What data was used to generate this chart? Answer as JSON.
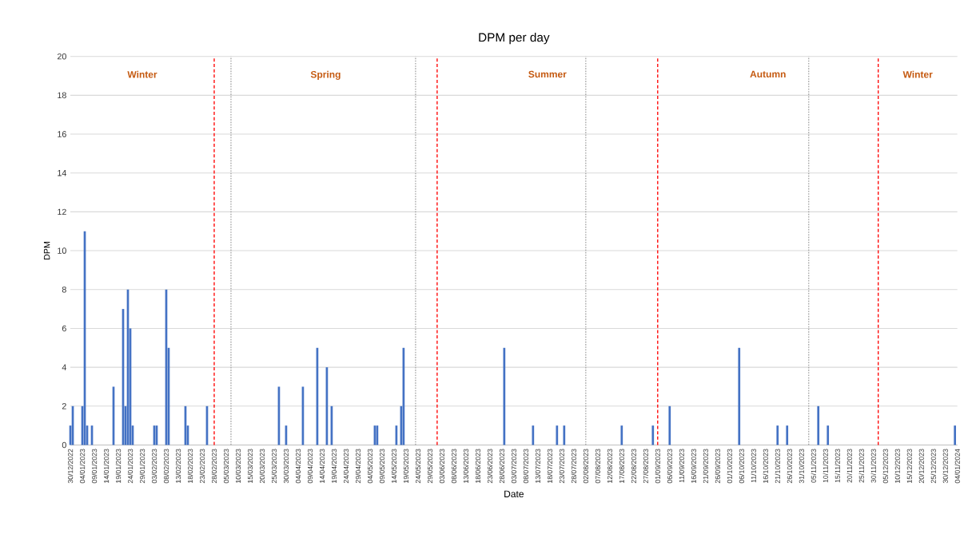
{
  "chart_data": {
    "type": "bar",
    "title": "DPM per day",
    "xlabel": "Date",
    "ylabel": "DPM",
    "color": "#4472c4",
    "x": [
      "2022-12-30",
      "2022-12-31",
      "2023-01-04",
      "2023-01-05",
      "2023-01-06",
      "2023-01-08",
      "2023-01-17",
      "2023-01-21",
      "2023-01-22",
      "2023-01-23",
      "2023-01-24",
      "2023-01-25",
      "2023-02-03",
      "2023-02-04",
      "2023-02-08",
      "2023-02-09",
      "2023-02-16",
      "2023-02-17",
      "2023-02-25",
      "2023-03-27",
      "2023-03-30",
      "2023-04-06",
      "2023-04-12",
      "2023-04-16",
      "2023-04-18",
      "2023-05-06",
      "2023-05-07",
      "2023-05-15",
      "2023-05-17",
      "2023-05-18",
      "2023-06-29",
      "2023-07-11",
      "2023-07-21",
      "2023-07-24",
      "2023-08-17",
      "2023-08-30",
      "2023-09-06",
      "2023-10-05",
      "2023-10-21",
      "2023-10-25",
      "2023-11-07",
      "2023-11-11",
      "2024-01-03"
    ],
    "values": [
      1,
      2,
      2,
      11,
      1,
      1,
      3,
      7,
      2,
      8,
      6,
      1,
      1,
      1,
      8,
      5,
      2,
      1,
      2,
      3,
      1,
      3,
      5,
      4,
      2,
      1,
      1,
      1,
      2,
      5,
      5,
      1,
      1,
      1,
      1,
      1,
      2,
      5,
      1,
      1,
      2,
      1,
      1
    ],
    "xlim": [
      "2022-12-30",
      "2024-01-04"
    ],
    "xticks": [
      {
        "value": "2022-12-30",
        "label": "30/12/2022"
      },
      {
        "value": "2023-01-04",
        "label": "04/01/2023"
      },
      {
        "value": "2023-01-09",
        "label": "09/01/2023"
      },
      {
        "value": "2023-01-14",
        "label": "14/01/2023"
      },
      {
        "value": "2023-01-19",
        "label": "19/01/2023"
      },
      {
        "value": "2023-01-24",
        "label": "24/01/2023"
      },
      {
        "value": "2023-01-29",
        "label": "29/01/2023"
      },
      {
        "value": "2023-02-03",
        "label": "03/02/2023"
      },
      {
        "value": "2023-02-08",
        "label": "08/02/2023"
      },
      {
        "value": "2023-02-13",
        "label": "13/02/2023"
      },
      {
        "value": "2023-02-18",
        "label": "18/02/2023"
      },
      {
        "value": "2023-02-23",
        "label": "23/02/2023"
      },
      {
        "value": "2023-02-28",
        "label": "28/02/2023"
      },
      {
        "value": "2023-03-05",
        "label": "05/03/2023"
      },
      {
        "value": "2023-03-10",
        "label": "10/03/2023"
      },
      {
        "value": "2023-03-15",
        "label": "15/03/2023"
      },
      {
        "value": "2023-03-20",
        "label": "20/03/2023"
      },
      {
        "value": "2023-03-25",
        "label": "25/03/2023"
      },
      {
        "value": "2023-03-30",
        "label": "30/03/2023"
      },
      {
        "value": "2023-04-04",
        "label": "04/04/2023"
      },
      {
        "value": "2023-04-09",
        "label": "09/04/2023"
      },
      {
        "value": "2023-04-14",
        "label": "14/04/2023"
      },
      {
        "value": "2023-04-19",
        "label": "19/04/2023"
      },
      {
        "value": "2023-04-24",
        "label": "24/04/2023"
      },
      {
        "value": "2023-04-29",
        "label": "29/04/2023"
      },
      {
        "value": "2023-05-04",
        "label": "04/05/2023"
      },
      {
        "value": "2023-05-09",
        "label": "09/05/2023"
      },
      {
        "value": "2023-05-14",
        "label": "14/05/2023"
      },
      {
        "value": "2023-05-19",
        "label": "19/05/2023"
      },
      {
        "value": "2023-05-24",
        "label": "24/05/2023"
      },
      {
        "value": "2023-05-29",
        "label": "29/05/2023"
      },
      {
        "value": "2023-06-03",
        "label": "03/06/2023"
      },
      {
        "value": "2023-06-08",
        "label": "08/06/2023"
      },
      {
        "value": "2023-06-13",
        "label": "13/06/2023"
      },
      {
        "value": "2023-06-18",
        "label": "18/06/2023"
      },
      {
        "value": "2023-06-23",
        "label": "23/06/2023"
      },
      {
        "value": "2023-06-28",
        "label": "28/06/2023"
      },
      {
        "value": "2023-07-03",
        "label": "03/07/2023"
      },
      {
        "value": "2023-07-08",
        "label": "08/07/2023"
      },
      {
        "value": "2023-07-13",
        "label": "13/07/2023"
      },
      {
        "value": "2023-07-18",
        "label": "18/07/2023"
      },
      {
        "value": "2023-07-23",
        "label": "23/07/2023"
      },
      {
        "value": "2023-07-28",
        "label": "28/07/2023"
      },
      {
        "value": "2023-08-02",
        "label": "02/08/2023"
      },
      {
        "value": "2023-08-07",
        "label": "07/08/2023"
      },
      {
        "value": "2023-08-12",
        "label": "12/08/2023"
      },
      {
        "value": "2023-08-17",
        "label": "17/08/2023"
      },
      {
        "value": "2023-08-22",
        "label": "22/08/2023"
      },
      {
        "value": "2023-08-27",
        "label": "27/08/2023"
      },
      {
        "value": "2023-09-01",
        "label": "01/09/2023"
      },
      {
        "value": "2023-09-06",
        "label": "06/09/2023"
      },
      {
        "value": "2023-09-11",
        "label": "11/09/2023"
      },
      {
        "value": "2023-09-16",
        "label": "16/09/2023"
      },
      {
        "value": "2023-09-21",
        "label": "21/09/2023"
      },
      {
        "value": "2023-09-26",
        "label": "26/09/2023"
      },
      {
        "value": "2023-10-01",
        "label": "01/10/2023"
      },
      {
        "value": "2023-10-06",
        "label": "06/10/2023"
      },
      {
        "value": "2023-10-11",
        "label": "11/10/2023"
      },
      {
        "value": "2023-10-16",
        "label": "16/10/2023"
      },
      {
        "value": "2023-10-21",
        "label": "21/10/2023"
      },
      {
        "value": "2023-10-26",
        "label": "26/10/2023"
      },
      {
        "value": "2023-10-31",
        "label": "31/10/2023"
      },
      {
        "value": "2023-11-05",
        "label": "05/11/2023"
      },
      {
        "value": "2023-11-10",
        "label": "10/11/2023"
      },
      {
        "value": "2023-11-15",
        "label": "15/11/2023"
      },
      {
        "value": "2023-11-20",
        "label": "20/11/2023"
      },
      {
        "value": "2023-11-25",
        "label": "25/11/2023"
      },
      {
        "value": "2023-11-30",
        "label": "30/11/2023"
      },
      {
        "value": "2023-12-05",
        "label": "05/12/2023"
      },
      {
        "value": "2023-12-10",
        "label": "10/12/2023"
      },
      {
        "value": "2023-12-15",
        "label": "15/12/2023"
      },
      {
        "value": "2023-12-20",
        "label": "20/12/2023"
      },
      {
        "value": "2023-12-25",
        "label": "25/12/2023"
      },
      {
        "value": "2023-12-30",
        "label": "30/12/2023"
      },
      {
        "value": "2024-01-04",
        "label": "04/01/2024"
      }
    ],
    "ylim": [
      0,
      20
    ],
    "yticks": [
      0,
      2,
      4,
      6,
      8,
      10,
      12,
      14,
      16,
      18,
      20
    ],
    "grid": "y",
    "ref_lines": [
      {
        "axis": "x",
        "value": "2023-02-28",
        "color": "#ff0000",
        "line_style": "dashed"
      },
      {
        "axis": "x",
        "value": "2023-03-07",
        "color": "#a6a6a6",
        "line_style": "dotted"
      },
      {
        "axis": "x",
        "value": "2023-05-23",
        "color": "#a6a6a6",
        "line_style": "dotted"
      },
      {
        "axis": "x",
        "value": "2023-06-01",
        "color": "#ff0000",
        "line_style": "dashed"
      },
      {
        "axis": "x",
        "value": "2023-08-02",
        "color": "#a6a6a6",
        "line_style": "dotted"
      },
      {
        "axis": "x",
        "value": "2023-09-01",
        "color": "#ff0000",
        "line_style": "dashed"
      },
      {
        "axis": "x",
        "value": "2023-11-03",
        "color": "#a6a6a6",
        "line_style": "dotted"
      },
      {
        "axis": "x",
        "value": "2023-12-02",
        "color": "#ff0000",
        "line_style": "dashed"
      }
    ],
    "annotations": [
      "Winter",
      "Spring",
      "Summer",
      "Autumn",
      "Winter"
    ]
  }
}
